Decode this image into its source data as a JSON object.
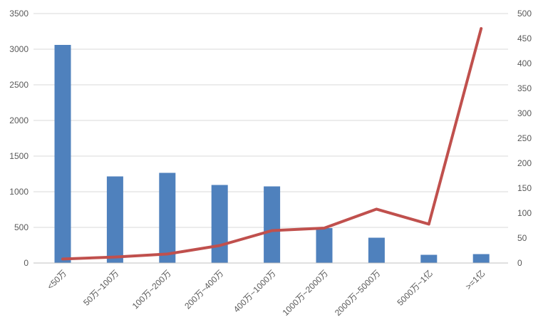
{
  "chart_data": {
    "type": "bar",
    "subtype": "bar-line-combo",
    "title": "",
    "categories": [
      "<50万",
      "50万~100万",
      "100万~200万",
      "200万~400万",
      "400万~1000万",
      "1000万~2000万",
      "2000万~5000万",
      "5000万~1亿",
      ">=1亿"
    ],
    "series": [
      {
        "name": "bar-series",
        "type": "bar",
        "axis": "left",
        "color": "#4f81bd",
        "values": [
          3060,
          1215,
          1265,
          1095,
          1075,
          490,
          355,
          115,
          125
        ]
      },
      {
        "name": "line-series",
        "type": "line",
        "axis": "right",
        "color": "#c0504d",
        "values": [
          8,
          12,
          18,
          35,
          65,
          70,
          108,
          78,
          470
        ]
      }
    ],
    "left_axis": {
      "min": 0,
      "max": 3500,
      "step": 500,
      "tick_labels": [
        "0",
        "500",
        "1000",
        "1500",
        "2000",
        "2500",
        "3000",
        "3500"
      ]
    },
    "right_axis": {
      "min": 0,
      "max": 500,
      "step": 50,
      "tick_labels": [
        "0",
        "50",
        "100",
        "150",
        "200",
        "250",
        "300",
        "350",
        "400",
        "450",
        "500"
      ]
    },
    "grid": true,
    "legend": false,
    "x_label_rotation_deg": -45,
    "colors": {
      "gridline": "#d9d9d9",
      "axis_line": "#c0c0c0",
      "tick_text": "#595959",
      "background": "#ffffff"
    }
  }
}
